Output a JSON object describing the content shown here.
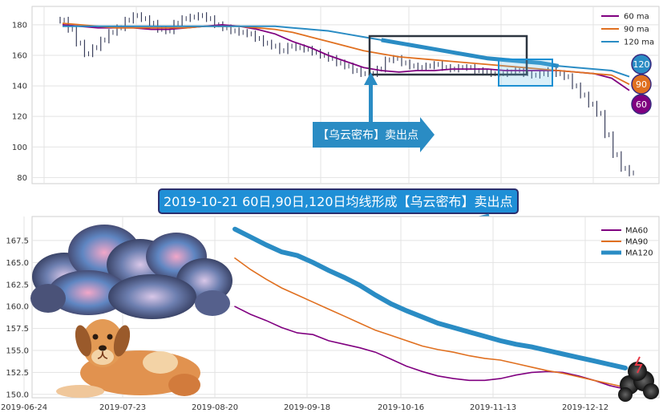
{
  "chart_data": [
    {
      "type": "line",
      "panel": "top",
      "title": "",
      "ylim": [
        76,
        192
      ],
      "y_ticks": [
        "80",
        "100",
        "120",
        "140",
        "160",
        "180"
      ],
      "grid": true,
      "legend_position": "top-right",
      "series": [
        {
          "name": "60 ma",
          "color": "#800080",
          "values": [
            180,
            179,
            178,
            178,
            178,
            177,
            177,
            178,
            179,
            180,
            179,
            177,
            174,
            169,
            165,
            160,
            156,
            152,
            150,
            149,
            150,
            150,
            151,
            151,
            151,
            150,
            150,
            150,
            150,
            149,
            148,
            145,
            137
          ]
        },
        {
          "name": "90 ma",
          "color": "#e07020",
          "values": [
            181,
            180,
            179,
            178,
            178,
            178,
            178,
            178,
            179,
            179,
            179,
            178,
            177,
            175,
            172,
            169,
            166,
            163,
            161,
            159,
            158,
            157,
            156,
            155,
            154,
            153,
            152,
            151,
            150,
            149,
            148,
            147,
            141
          ]
        },
        {
          "name": "120 ma",
          "color": "#2a8cc4",
          "values": [
            179,
            179,
            179,
            179,
            179,
            179,
            179,
            179,
            179,
            179,
            179,
            179,
            179,
            178,
            177,
            176,
            174,
            172,
            170,
            168,
            166,
            164,
            162,
            160,
            158,
            157,
            156,
            155,
            153,
            152,
            151,
            150,
            146
          ]
        }
      ],
      "price_candles": {
        "color": "#3a3f5c",
        "close": [
          183,
          177,
          168,
          161,
          165,
          170,
          175,
          178,
          183,
          186,
          184,
          181,
          177,
          176,
          181,
          184,
          185,
          186,
          184,
          180,
          178,
          176,
          175,
          174,
          171,
          168,
          166,
          163,
          166,
          165,
          164,
          162,
          160,
          158,
          155,
          153,
          150,
          148,
          148,
          151,
          157,
          158,
          155,
          153,
          152,
          153,
          154,
          152,
          151,
          152,
          152,
          150,
          149,
          148,
          148,
          149,
          150,
          148,
          147,
          148,
          150,
          148,
          146,
          140,
          134,
          128,
          122,
          108,
          95,
          86,
          83
        ]
      },
      "annotation": {
        "text": "【乌云密布】卖出点"
      },
      "markers": [
        {
          "label": "120",
          "color": "#2a8cc4"
        },
        {
          "label": "90",
          "color": "#e07020"
        },
        {
          "label": "60",
          "color": "#800080"
        }
      ]
    },
    {
      "type": "line",
      "panel": "bottom",
      "title": "2019-10-21 60日,90日,120日均线形成【乌云密布】卖出点",
      "ylim": [
        149.8,
        169.5
      ],
      "y_ticks": [
        "150.0",
        "152.5",
        "155.0",
        "157.5",
        "160.0",
        "162.5",
        "165.0",
        "167.5"
      ],
      "x_ticks": [
        "2019-06-24",
        "2019-07-23",
        "2019-08-20",
        "2019-09-18",
        "2019-10-16",
        "2019-11-13",
        "2019-12-12"
      ],
      "grid": true,
      "legend_position": "top-right",
      "series": [
        {
          "name": "MA60",
          "color": "#800080",
          "values": [
            160.0,
            159.1,
            158.4,
            157.6,
            157.0,
            156.8,
            156.1,
            155.7,
            155.3,
            154.8,
            154.0,
            153.2,
            152.6,
            152.1,
            151.8,
            151.6,
            151.6,
            151.8,
            152.2,
            152.5,
            152.6,
            152.5,
            152.1,
            151.6,
            151.0,
            150.6
          ]
        },
        {
          "name": "MA90",
          "color": "#e07020",
          "values": [
            165.5,
            164.2,
            163.1,
            162.1,
            161.3,
            160.5,
            159.7,
            158.9,
            158.1,
            157.3,
            156.7,
            156.1,
            155.5,
            155.1,
            154.8,
            154.4,
            154.1,
            153.9,
            153.5,
            153.1,
            152.7,
            152.4,
            152.0,
            151.6,
            151.2,
            150.8
          ]
        },
        {
          "name": "MA120",
          "color": "#2a8cc4",
          "values": [
            168.8,
            167.9,
            167.0,
            166.2,
            165.8,
            165.0,
            164.1,
            163.3,
            162.4,
            161.3,
            160.3,
            159.5,
            158.8,
            158.1,
            157.6,
            157.1,
            156.6,
            156.1,
            155.7,
            155.4,
            155.0,
            154.6,
            154.2,
            153.8,
            153.4,
            153.0
          ]
        }
      ]
    }
  ]
}
